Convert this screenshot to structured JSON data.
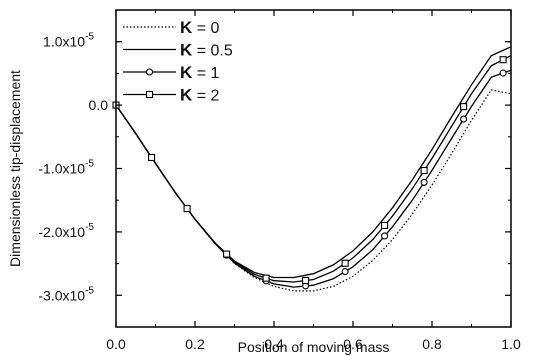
{
  "chart_data": {
    "type": "line",
    "xlabel": "Position of moving mass",
    "ylabel": "Dimensionless tip-displacement",
    "xlim": [
      0.0,
      1.0
    ],
    "ylim": [
      -3.5e-05,
      1.5e-05
    ],
    "x_ticks": [
      "0.0",
      "0.2",
      "0.4",
      "0.6",
      "0.8",
      "1.0"
    ],
    "y_ticks": [
      {
        "value": 1e-05,
        "base": "1.0x10",
        "exp": "-5"
      },
      {
        "value": 0.0,
        "base": "0.0",
        "exp": ""
      },
      {
        "value": -1e-05,
        "base": "-1.0x10",
        "exp": "-5"
      },
      {
        "value": -2e-05,
        "base": "-2.0x10",
        "exp": "-5"
      },
      {
        "value": -3e-05,
        "base": "-3.0x10",
        "exp": "-5"
      }
    ],
    "grid": false,
    "legend_position": "top-left",
    "x": [
      0.0,
      0.05,
      0.1,
      0.15,
      0.2,
      0.25,
      0.3,
      0.35,
      0.4,
      0.45,
      0.5,
      0.55,
      0.6,
      0.65,
      0.7,
      0.75,
      0.8,
      0.85,
      0.9,
      0.95,
      1.0
    ],
    "series": [
      {
        "name_prefix": "K",
        "name_value": " = 0",
        "style": "dotted",
        "marker": "none",
        "values": [
          0.0,
          -4.5e-06,
          -9.2e-06,
          -1.38e-05,
          -1.8e-05,
          -2.18e-05,
          -2.5e-05,
          -2.72e-05,
          -2.86e-05,
          -2.93e-05,
          -2.93e-05,
          -2.86e-05,
          -2.7e-05,
          -2.45e-05,
          -2.12e-05,
          -1.72e-05,
          -1.26e-05,
          -7.6e-06,
          -2.4e-06,
          2.4e-06,
          1.8e-06
        ]
      },
      {
        "name_prefix": "K",
        "name_value": " = 0.5",
        "style": "solid",
        "marker": "none",
        "values": [
          0.0,
          -4.5e-06,
          -9.2e-06,
          -1.38e-05,
          -1.8e-05,
          -2.17e-05,
          -2.46e-05,
          -2.64e-05,
          -2.72e-05,
          -2.72e-05,
          -2.66e-05,
          -2.52e-05,
          -2.3e-05,
          -2e-05,
          -1.62e-05,
          -1.18e-05,
          -7e-06,
          -1.8e-06,
          3.2e-06,
          7.8e-06,
          9.2e-06
        ]
      },
      {
        "name_prefix": "K",
        "name_value": " = 1",
        "style": "solid",
        "marker": "circle",
        "values": [
          0.0,
          -4.5e-06,
          -9.2e-06,
          -1.38e-05,
          -1.8e-05,
          -2.18e-05,
          -2.49e-05,
          -2.7e-05,
          -2.82e-05,
          -2.87e-05,
          -2.84e-05,
          -2.74e-05,
          -2.55e-05,
          -2.28e-05,
          -1.92e-05,
          -1.5e-05,
          -1.03e-05,
          -5.2e-06,
          -2e-07,
          4.4e-06,
          5.5e-06
        ]
      },
      {
        "name_prefix": "K",
        "name_value": " = 2",
        "style": "solid",
        "marker": "square",
        "values": [
          0.0,
          -4.5e-06,
          -9.2e-06,
          -1.38e-05,
          -1.8e-05,
          -2.17e-05,
          -2.47e-05,
          -2.67e-05,
          -2.77e-05,
          -2.79e-05,
          -2.75e-05,
          -2.62e-05,
          -2.41e-05,
          -2.12e-05,
          -1.75e-05,
          -1.32e-05,
          -8.4e-06,
          -3.3e-06,
          1.8e-06,
          6.2e-06,
          7.8e-06
        ]
      }
    ],
    "marker_x": [
      0.0,
      0.09,
      0.18,
      0.28,
      0.38,
      0.48,
      0.58,
      0.68,
      0.78,
      0.88,
      0.98
    ]
  }
}
